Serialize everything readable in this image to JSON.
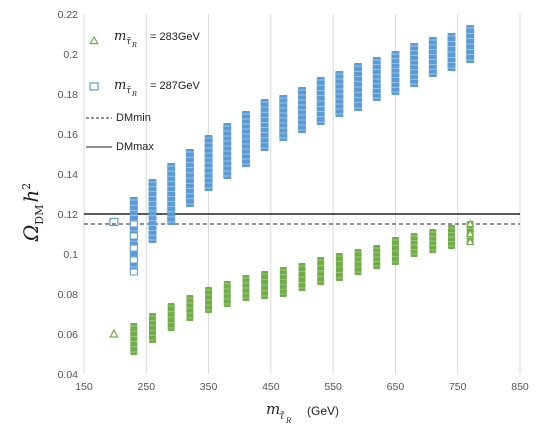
{
  "chart_data": {
    "type": "scatter",
    "title": "",
    "xlabel": "m_{τ̃_R} (GeV)",
    "ylabel": "Ω_DM h²",
    "xlabel_parts": {
      "base": "m",
      "sub": "τ̃",
      "subsub": "R",
      "unit": "(GeV)"
    },
    "ylabel_parts": {
      "base": "Ω",
      "sub": "DM",
      "tail": "h",
      "sup": "2"
    },
    "xlim": [
      150,
      850
    ],
    "ylim": [
      0.04,
      0.22
    ],
    "x_ticks": [
      "150",
      "250",
      "350",
      "450",
      "550",
      "650",
      "750",
      "850"
    ],
    "y_ticks": [
      "0.04",
      "0.06",
      "0.08",
      "0.1",
      "0.12",
      "0.14",
      "0.16",
      "0.18",
      "0.2",
      "0.22"
    ],
    "grid": "vertical",
    "legend_position": "top-left",
    "hlines": [
      {
        "name": "DMmin",
        "y": 0.115,
        "style": "dashed",
        "color": "#222222"
      },
      {
        "name": "DMmax",
        "y": 0.12,
        "style": "solid",
        "color": "#222222"
      }
    ],
    "series": [
      {
        "name": "m_{τ̃_R} = 283GeV",
        "legend_value": "= 283GeV",
        "marker": "triangle",
        "color": "#70ad47",
        "isolated_points": [
          [
            198,
            0.06
          ]
        ],
        "columns": [
          {
            "x": 230,
            "ymin": 0.051,
            "ymax": 0.064
          },
          {
            "x": 260,
            "ymin": 0.057,
            "ymax": 0.069
          },
          {
            "x": 290,
            "ymin": 0.063,
            "ymax": 0.074
          },
          {
            "x": 320,
            "ymin": 0.068,
            "ymax": 0.078
          },
          {
            "x": 350,
            "ymin": 0.072,
            "ymax": 0.082
          },
          {
            "x": 380,
            "ymin": 0.075,
            "ymax": 0.085
          },
          {
            "x": 410,
            "ymin": 0.078,
            "ymax": 0.088
          },
          {
            "x": 440,
            "ymin": 0.079,
            "ymax": 0.09
          },
          {
            "x": 470,
            "ymin": 0.08,
            "ymax": 0.092
          },
          {
            "x": 500,
            "ymin": 0.083,
            "ymax": 0.094
          },
          {
            "x": 530,
            "ymin": 0.086,
            "ymax": 0.097
          },
          {
            "x": 560,
            "ymin": 0.088,
            "ymax": 0.099
          },
          {
            "x": 590,
            "ymin": 0.091,
            "ymax": 0.101
          },
          {
            "x": 620,
            "ymin": 0.094,
            "ymax": 0.103
          },
          {
            "x": 650,
            "ymin": 0.096,
            "ymax": 0.107
          },
          {
            "x": 680,
            "ymin": 0.1,
            "ymax": 0.109
          },
          {
            "x": 710,
            "ymin": 0.102,
            "ymax": 0.111
          },
          {
            "x": 740,
            "ymin": 0.104,
            "ymax": 0.113
          },
          {
            "x": 770,
            "ymin": 0.106,
            "ymax": 0.115
          }
        ]
      },
      {
        "name": "m_{τ̃_R} = 287GeV",
        "legend_value": "= 287GeV",
        "marker": "square",
        "color": "#5b9bd5",
        "isolated_points": [
          [
            198,
            0.116
          ]
        ],
        "columns": [
          {
            "x": 230,
            "ymin": 0.091,
            "ymax": 0.127
          },
          {
            "x": 260,
            "ymin": 0.107,
            "ymax": 0.136
          },
          {
            "x": 290,
            "ymin": 0.116,
            "ymax": 0.144
          },
          {
            "x": 320,
            "ymin": 0.125,
            "ymax": 0.151
          },
          {
            "x": 350,
            "ymin": 0.133,
            "ymax": 0.158
          },
          {
            "x": 380,
            "ymin": 0.139,
            "ymax": 0.164
          },
          {
            "x": 410,
            "ymin": 0.145,
            "ymax": 0.17
          },
          {
            "x": 440,
            "ymin": 0.153,
            "ymax": 0.176
          },
          {
            "x": 470,
            "ymin": 0.158,
            "ymax": 0.178
          },
          {
            "x": 500,
            "ymin": 0.162,
            "ymax": 0.182
          },
          {
            "x": 530,
            "ymin": 0.166,
            "ymax": 0.187
          },
          {
            "x": 560,
            "ymin": 0.17,
            "ymax": 0.19
          },
          {
            "x": 590,
            "ymin": 0.173,
            "ymax": 0.194
          },
          {
            "x": 620,
            "ymin": 0.178,
            "ymax": 0.197
          },
          {
            "x": 650,
            "ymin": 0.181,
            "ymax": 0.2
          },
          {
            "x": 680,
            "ymin": 0.185,
            "ymax": 0.204
          },
          {
            "x": 710,
            "ymin": 0.19,
            "ymax": 0.207
          },
          {
            "x": 740,
            "ymin": 0.193,
            "ymax": 0.209
          },
          {
            "x": 770,
            "ymin": 0.197,
            "ymax": 0.213
          }
        ]
      }
    ]
  }
}
